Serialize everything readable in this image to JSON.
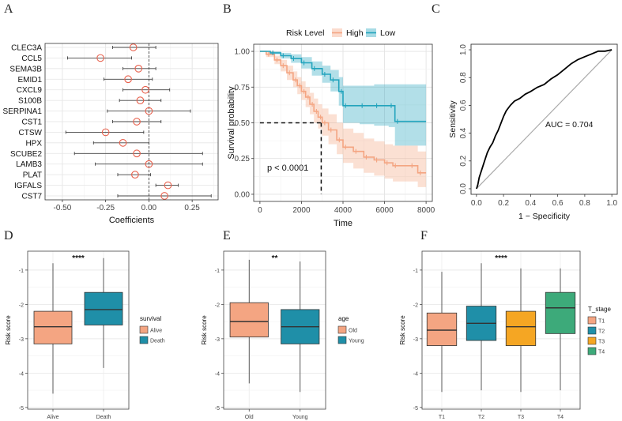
{
  "panel_letters": [
    "A",
    "B",
    "C",
    "D",
    "E",
    "F"
  ],
  "colors": {
    "high": "#F4A582",
    "low": "#23A4BD",
    "alive": "#F4A582",
    "death": "#1F8FA8",
    "old": "#F4A582",
    "young": "#1F8FA8",
    "t1": "#F4A582",
    "t2": "#1F8FA8",
    "t3": "#F5A623",
    "t4": "#3DAA7A",
    "point": "#E8604C",
    "roc": "#000000"
  },
  "chart_data": [
    {
      "panel": "A",
      "type": "scatter",
      "subtype": "forest",
      "xlabel": "Coefficients",
      "xlim": [
        -0.6,
        0.4
      ],
      "xticks": [
        "-0.50",
        "-0.25",
        "0.00",
        "0.25"
      ],
      "xtick_values": [
        -0.5,
        -0.25,
        0.0,
        0.25
      ],
      "genes": [
        "CLEC3A",
        "CCL5",
        "SEMA3B",
        "EMID1",
        "CXCL9",
        "S100B",
        "SERPINA1",
        "CST1",
        "CTSW",
        "HPX",
        "SCUBE2",
        "LAMB3",
        "PLAT",
        "IGFALS",
        "CST7"
      ],
      "estimates": [
        -0.09,
        -0.28,
        -0.06,
        -0.12,
        -0.02,
        -0.05,
        0.0,
        -0.07,
        -0.25,
        -0.15,
        -0.07,
        0.0,
        -0.08,
        0.11,
        0.09
      ],
      "lower": [
        -0.21,
        -0.47,
        -0.15,
        -0.26,
        -0.15,
        -0.17,
        -0.24,
        -0.21,
        -0.48,
        -0.32,
        -0.43,
        -0.31,
        -0.18,
        0.04,
        -0.18
      ],
      "upper": [
        0.04,
        -0.1,
        0.04,
        0.02,
        0.12,
        0.07,
        0.24,
        0.07,
        -0.03,
        0.0,
        0.31,
        0.31,
        0.01,
        0.17,
        0.36
      ]
    },
    {
      "panel": "B",
      "type": "line",
      "subtype": "kaplan-meier",
      "legend_title": "Risk Level",
      "series": [
        {
          "name": "High",
          "x": [
            0,
            300,
            700,
            1000,
            1300,
            1600,
            1800,
            2000,
            2200,
            2400,
            2600,
            2800,
            3000,
            3300,
            3700,
            4000,
            4500,
            5000,
            5500,
            6000,
            6400,
            7200,
            7600,
            8000
          ],
          "y": [
            1.0,
            0.98,
            0.94,
            0.9,
            0.85,
            0.8,
            0.76,
            0.72,
            0.68,
            0.63,
            0.58,
            0.54,
            0.5,
            0.45,
            0.38,
            0.33,
            0.3,
            0.26,
            0.24,
            0.22,
            0.2,
            0.2,
            0.15,
            0.15
          ],
          "lower": [
            1.0,
            0.96,
            0.91,
            0.86,
            0.8,
            0.75,
            0.7,
            0.66,
            0.61,
            0.56,
            0.5,
            0.46,
            0.41,
            0.35,
            0.28,
            0.22,
            0.18,
            0.15,
            0.13,
            0.11,
            0.09,
            0.09,
            0.05,
            0.05
          ],
          "upper": [
            1.0,
            1.0,
            0.97,
            0.94,
            0.9,
            0.86,
            0.82,
            0.79,
            0.75,
            0.71,
            0.67,
            0.63,
            0.6,
            0.56,
            0.5,
            0.46,
            0.43,
            0.39,
            0.37,
            0.35,
            0.34,
            0.34,
            0.3,
            0.3
          ]
        },
        {
          "name": "Low",
          "x": [
            0,
            500,
            1000,
            1500,
            2000,
            2500,
            3000,
            3400,
            3800,
            4000,
            4800,
            5500,
            6200,
            6500,
            8000
          ],
          "y": [
            1.0,
            0.99,
            0.97,
            0.95,
            0.92,
            0.88,
            0.84,
            0.8,
            0.72,
            0.62,
            0.62,
            0.62,
            0.62,
            0.51,
            0.51
          ],
          "lower": [
            1.0,
            0.98,
            0.95,
            0.92,
            0.88,
            0.83,
            0.78,
            0.72,
            0.62,
            0.5,
            0.49,
            0.48,
            0.47,
            0.34,
            0.34
          ],
          "upper": [
            1.0,
            1.0,
            0.99,
            0.98,
            0.96,
            0.93,
            0.9,
            0.87,
            0.82,
            0.76,
            0.76,
            0.77,
            0.77,
            0.77,
            0.77
          ]
        }
      ],
      "xlabel": "Time",
      "ylabel": "Survival probability",
      "xlim": [
        -300,
        8300
      ],
      "ylim": [
        -0.05,
        1.05
      ],
      "xticks": [
        "0",
        "2000",
        "4000",
        "6000",
        "8000"
      ],
      "xtick_values": [
        0,
        2000,
        4000,
        6000,
        8000
      ],
      "yticks": [
        "0.00",
        "0.25",
        "0.50",
        "0.75",
        "1.00"
      ],
      "ytick_values": [
        0,
        0.25,
        0.5,
        0.75,
        1.0
      ],
      "median_survival_time": 2950,
      "annotation": "p < 0.0001"
    },
    {
      "panel": "C",
      "type": "line",
      "subtype": "roc",
      "xlabel": "1 − Specificity",
      "ylabel": "Sensitivity",
      "xlim": [
        -0.04,
        1.04
      ],
      "ylim": [
        -0.04,
        1.04
      ],
      "xticks": [
        "0.0",
        "0.2",
        "0.4",
        "0.6",
        "0.8",
        "1.0"
      ],
      "xtick_values": [
        0,
        0.2,
        0.4,
        0.6,
        0.8,
        1.0
      ],
      "yticks": [
        "0.0",
        "0.2",
        "0.4",
        "0.6",
        "0.8",
        "1.0"
      ],
      "ytick_values": [
        0,
        0.2,
        0.4,
        0.6,
        0.8,
        1.0
      ],
      "x": [
        0.0,
        0.01,
        0.02,
        0.04,
        0.06,
        0.08,
        0.1,
        0.12,
        0.14,
        0.16,
        0.18,
        0.2,
        0.22,
        0.25,
        0.28,
        0.32,
        0.36,
        0.4,
        0.45,
        0.5,
        0.55,
        0.6,
        0.65,
        0.7,
        0.75,
        0.8,
        0.85,
        0.9,
        0.95,
        1.0
      ],
      "y": [
        0.0,
        0.03,
        0.08,
        0.14,
        0.2,
        0.26,
        0.3,
        0.33,
        0.38,
        0.42,
        0.47,
        0.52,
        0.56,
        0.6,
        0.63,
        0.65,
        0.68,
        0.7,
        0.73,
        0.75,
        0.79,
        0.82,
        0.86,
        0.9,
        0.93,
        0.95,
        0.97,
        0.99,
        0.99,
        1.0
      ],
      "annotation": "AUC = 0.704"
    },
    {
      "panel": "D",
      "type": "bar",
      "subtype": "boxplot",
      "ylabel": "Risk score",
      "ylim": [
        -5.05,
        -0.45
      ],
      "yticks": [
        "-1",
        "-2",
        "-3",
        "-4",
        "-5"
      ],
      "ytick_values": [
        -1,
        -2,
        -3,
        -4,
        -5
      ],
      "categories": [
        "Alive",
        "Death"
      ],
      "boxes": [
        {
          "min": -4.6,
          "q1": -3.15,
          "median": -2.65,
          "q3": -2.2,
          "max": -0.8
        },
        {
          "min": -3.85,
          "q1": -2.6,
          "median": -2.15,
          "q3": -1.65,
          "max": -0.65
        }
      ],
      "significance": "****",
      "legend_title": "survival",
      "legend_labels": [
        "Alive",
        "Death"
      ]
    },
    {
      "panel": "E",
      "type": "bar",
      "subtype": "boxplot",
      "ylabel": "Risk score",
      "ylim": [
        -5.05,
        -0.45
      ],
      "yticks": [
        "-1",
        "-2",
        "-3",
        "-4",
        "-5"
      ],
      "ytick_values": [
        -1,
        -2,
        -3,
        -4,
        -5
      ],
      "categories": [
        "Old",
        "Young"
      ],
      "boxes": [
        {
          "min": -4.3,
          "q1": -2.95,
          "median": -2.5,
          "q3": -1.95,
          "max": -0.7
        },
        {
          "min": -4.55,
          "q1": -3.15,
          "median": -2.65,
          "q3": -2.15,
          "max": -0.75
        }
      ],
      "significance": "**",
      "legend_title": "age",
      "legend_labels": [
        "Old",
        "Young"
      ]
    },
    {
      "panel": "F",
      "type": "bar",
      "subtype": "boxplot",
      "ylabel": "Risk score",
      "ylim": [
        -5.05,
        -0.45
      ],
      "yticks": [
        "-1",
        "-2",
        "-3",
        "-4",
        "-5"
      ],
      "ytick_values": [
        -1,
        -2,
        -3,
        -4,
        -5
      ],
      "categories": [
        "T1",
        "T2",
        "T3",
        "T4"
      ],
      "boxes": [
        {
          "min": -4.55,
          "q1": -3.2,
          "median": -2.75,
          "q3": -2.25,
          "max": -1.05
        },
        {
          "min": -4.5,
          "q1": -3.05,
          "median": -2.55,
          "q3": -2.05,
          "max": -0.8
        },
        {
          "min": -4.55,
          "q1": -3.2,
          "median": -2.65,
          "q3": -2.2,
          "max": -0.95
        },
        {
          "min": -4.5,
          "q1": -2.85,
          "median": -2.1,
          "q3": -1.65,
          "max": -0.95
        }
      ],
      "significance": "****",
      "legend_title": "T_stage",
      "legend_labels": [
        "T1",
        "T2",
        "T3",
        "T4"
      ]
    }
  ]
}
